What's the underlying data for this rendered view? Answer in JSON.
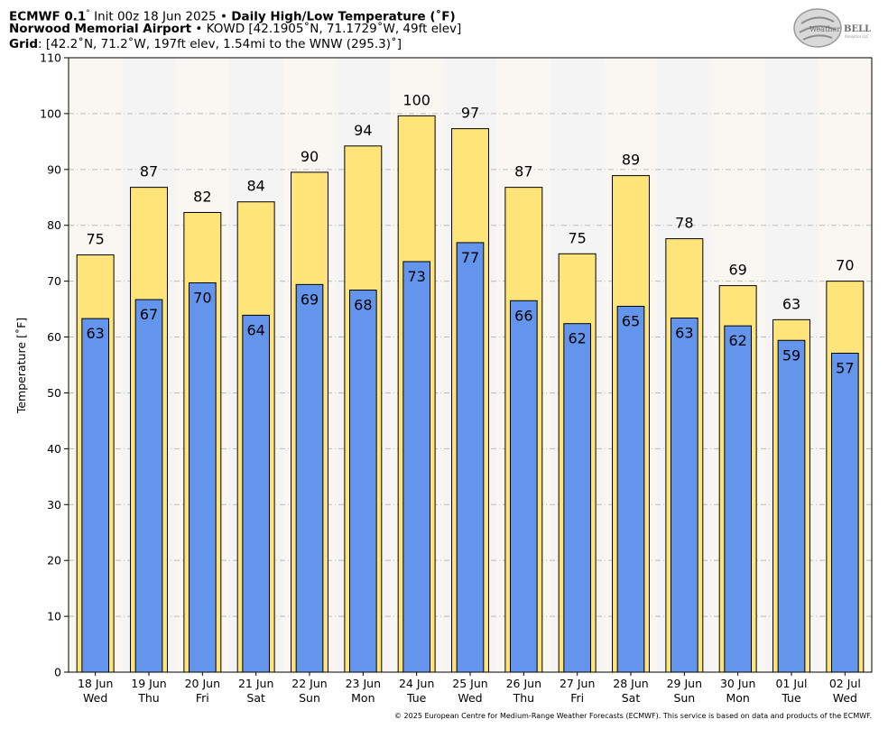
{
  "header": {
    "line1_model": "ECMWF 0.1",
    "line1_deg": "°",
    "line1_init": " Init 00z 18 Jun 2025",
    "line1_sep": " • ",
    "line1_title": "Daily High/Low Temperature (˚F)",
    "line2_station": "Norwood Memorial Airport",
    "line2_sep": " • ",
    "line2_details": "KOWD [42.1905˚N, 71.1729˚W, 49ft elev]",
    "line3_label": "Grid",
    "line3_details": ": [42.2˚N, 71.2˚W, 197ft elev, 1.54mi to the WNW (295.3)˚]"
  },
  "logo": {
    "text_a": "Weather",
    "text_b": "BELL",
    "sub": "Analytics LLC"
  },
  "copyright": "© 2025 European Centre for Medium-Range Weather Forecasts (ECMWF). This service is based on data and products of the ECMWF.",
  "chart_data": {
    "type": "bar",
    "ylabel": "Temperature [˚F]",
    "ylim": [
      0,
      110
    ],
    "yticks": [
      0,
      10,
      20,
      30,
      40,
      50,
      60,
      70,
      80,
      90,
      100,
      110
    ],
    "grid": true,
    "categories": [
      [
        "18 Jun",
        "Wed"
      ],
      [
        "19 Jun",
        "Thu"
      ],
      [
        "20 Jun",
        "Fri"
      ],
      [
        "21 Jun",
        "Sat"
      ],
      [
        "22 Jun",
        "Sun"
      ],
      [
        "23 Jun",
        "Mon"
      ],
      [
        "24 Jun",
        "Tue"
      ],
      [
        "25 Jun",
        "Wed"
      ],
      [
        "26 Jun",
        "Thu"
      ],
      [
        "27 Jun",
        "Fri"
      ],
      [
        "28 Jun",
        "Sat"
      ],
      [
        "29 Jun",
        "Sun"
      ],
      [
        "30 Jun",
        "Mon"
      ],
      [
        "01 Jul",
        "Tue"
      ],
      [
        "02 Jul",
        "Wed"
      ]
    ],
    "series": [
      {
        "values": [
          74.7,
          86.8,
          82.3,
          84.2,
          89.5,
          94.2,
          99.6,
          97.3,
          86.8,
          74.9,
          88.9,
          77.6,
          69.2,
          63.1,
          70.0
        ],
        "labels": [
          "75",
          "87",
          "82",
          "84",
          "90",
          "94",
          "100",
          "97",
          "87",
          "75",
          "89",
          "78",
          "69",
          "63",
          "70"
        ]
      },
      {
        "values": [
          63.3,
          66.7,
          69.7,
          63.9,
          69.4,
          68.4,
          73.5,
          76.9,
          66.5,
          62.4,
          65.5,
          63.4,
          62.0,
          59.4,
          57.1
        ],
        "labels": [
          "63",
          "67",
          "70",
          "64",
          "69",
          "68",
          "73",
          "77",
          "66",
          "62",
          "65",
          "63",
          "62",
          "59",
          "57"
        ]
      }
    ],
    "colors": {
      "high": "#ffe479",
      "low": "#6495ed",
      "plot_bg": "#f4f4f4",
      "plot_bg_alt": "#faf7f2",
      "grid": "#bbbbbb"
    }
  }
}
